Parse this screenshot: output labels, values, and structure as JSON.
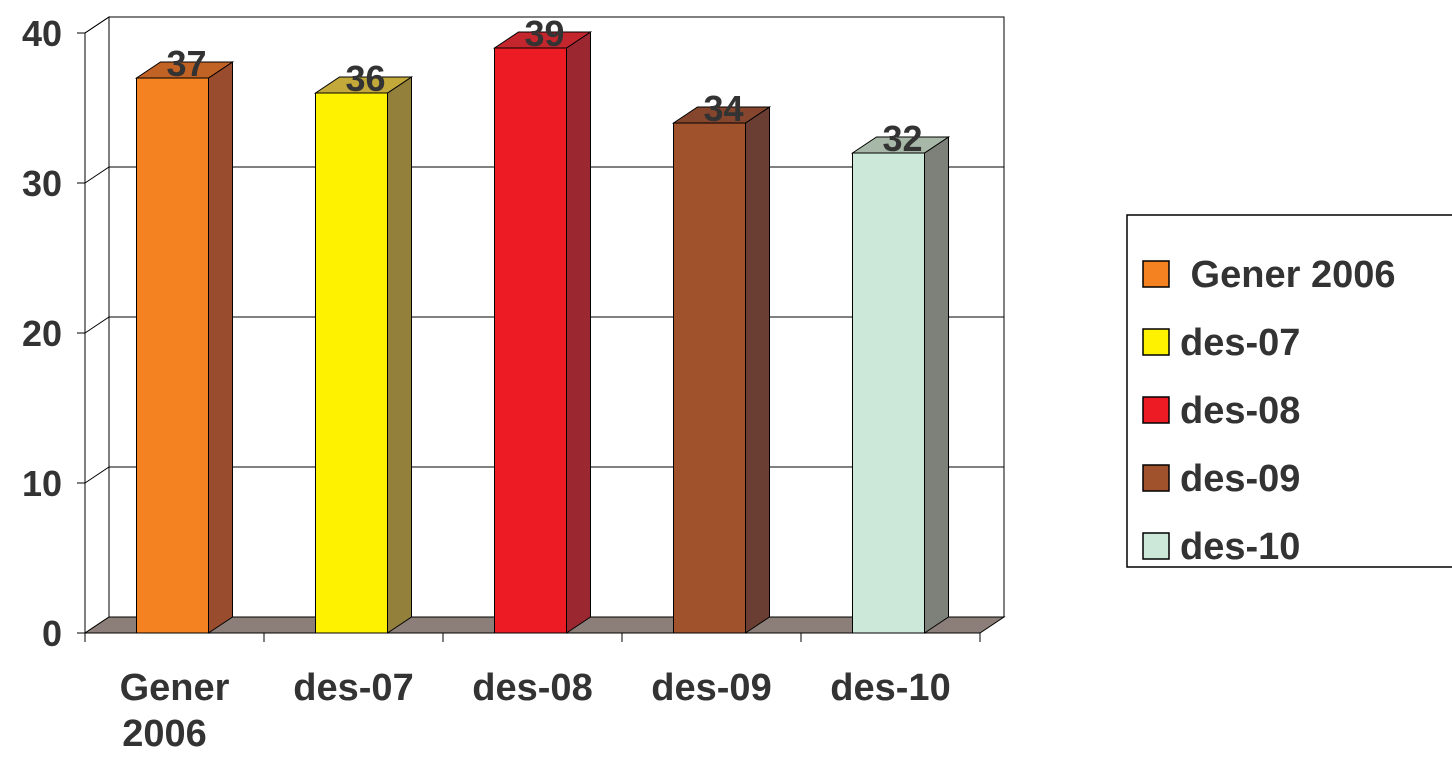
{
  "chart_data": {
    "type": "bar",
    "style": "3d-column",
    "title": "",
    "xlabel": "",
    "ylabel": "",
    "categories": [
      "Gener 2006",
      "des-07",
      "des-08",
      "des-09",
      "des-10"
    ],
    "category_tick_lines": [
      [
        "Gener",
        "2006"
      ],
      [
        "des-07"
      ],
      [
        "des-08"
      ],
      [
        "des-09"
      ],
      [
        "des-10"
      ]
    ],
    "values": [
      37,
      36,
      39,
      34,
      32
    ],
    "data_labels": [
      "37",
      "36",
      "39",
      "34",
      "32"
    ],
    "ylim": [
      0,
      40
    ],
    "yticks": [
      0,
      10,
      20,
      30,
      40
    ],
    "ytick_labels": [
      "0",
      "10",
      "20",
      "30",
      "40"
    ],
    "grid": "horizontal",
    "legend": {
      "position": "right",
      "entries": [
        " Gener 2006",
        "des-07",
        "des-08",
        "des-09",
        "des-10"
      ]
    },
    "colors": {
      "front": [
        "#F58220",
        "#FFF200",
        "#ED1C24",
        "#A0522D",
        "#CCE8D8"
      ],
      "side": [
        "#9A4D2E",
        "#93803A",
        "#9B2830",
        "#6A3E32",
        "#7E817A"
      ],
      "top": [
        "#C26326",
        "#C2A939",
        "#C4262E",
        "#86462E",
        "#A8B8A8"
      ],
      "floor": "#8C7F7A",
      "text": "#333333"
    }
  }
}
